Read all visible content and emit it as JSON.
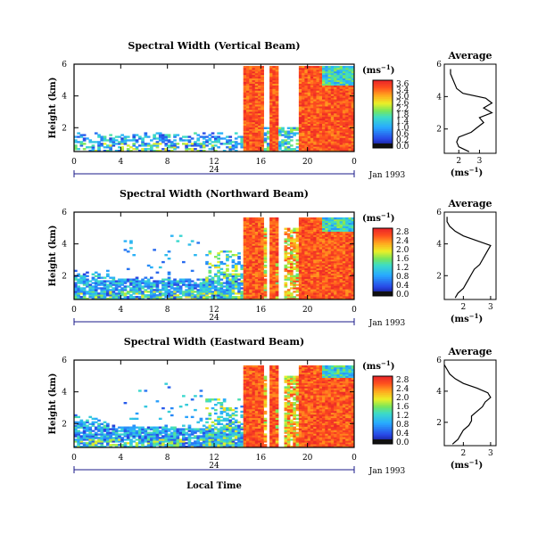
{
  "figure": {
    "xlabel": "Local Time",
    "date_label": "Jan 1993",
    "mid_day_label": "24",
    "ylabel": "Height (km)",
    "units_label": "(ms",
    "units_exp": "−1",
    "avg_title": "Average",
    "avg_xlabel": "(ms",
    "avg_xlabel_exp": "−1",
    "avg_xlabel_close": ")"
  },
  "chart_data": [
    {
      "type": "heatmap",
      "title": "Spectral Width (Vertical Beam)",
      "xlabel": "Local Time",
      "ylabel": "Height (km)",
      "x_ticks": [
        "0",
        "4",
        "8",
        "12",
        "16",
        "20",
        "0"
      ],
      "y_ticks": [
        "6",
        "4",
        "2"
      ],
      "xlim": [
        0,
        24
      ],
      "ylim": [
        0.5,
        6
      ],
      "colorbar": {
        "ticks": [
          "3.6",
          "3.4",
          "3.0",
          "2.6",
          "2.2",
          "1.8",
          "1.4",
          "1.0",
          "0.6",
          "0.2",
          "0.0"
        ],
        "range": [
          0,
          3.6
        ]
      },
      "average_profile": {
        "x_ticks": [
          "2",
          "3"
        ],
        "xlim": [
          1.3,
          3.8
        ],
        "height": [
          0.6,
          0.9,
          1.2,
          1.5,
          1.8,
          2.1,
          2.4,
          2.7,
          3.0,
          3.3,
          3.6,
          3.9,
          4.2,
          4.5,
          4.8,
          5.1,
          5.4,
          5.7
        ],
        "width": [
          2.5,
          2.0,
          1.9,
          2.0,
          2.6,
          2.9,
          3.2,
          3.0,
          3.6,
          3.2,
          3.6,
          3.3,
          2.2,
          1.9,
          1.8,
          1.7,
          1.6,
          1.6
        ]
      }
    },
    {
      "type": "heatmap",
      "title": "Spectral Width (Northward Beam)",
      "xlabel": "Local Time",
      "ylabel": "Height (km)",
      "x_ticks": [
        "0",
        "4",
        "8",
        "12",
        "16",
        "20",
        "0"
      ],
      "y_ticks": [
        "6",
        "4",
        "2"
      ],
      "xlim": [
        0,
        24
      ],
      "ylim": [
        0.5,
        6
      ],
      "colorbar": {
        "ticks": [
          "2.8",
          "2.4",
          "2.0",
          "1.6",
          "1.2",
          "0.8",
          "0.4",
          "0.0"
        ],
        "range": [
          0,
          2.8
        ]
      },
      "average_profile": {
        "x_ticks": [
          "2",
          "3"
        ],
        "xlim": [
          1.3,
          3.2
        ],
        "height": [
          0.6,
          0.9,
          1.2,
          1.5,
          1.8,
          2.1,
          2.4,
          2.7,
          3.0,
          3.3,
          3.6,
          3.9,
          4.2,
          4.5,
          4.8,
          5.1,
          5.4,
          5.7
        ],
        "width": [
          1.7,
          1.8,
          2.0,
          2.1,
          2.2,
          2.3,
          2.4,
          2.6,
          2.7,
          2.8,
          2.9,
          3.0,
          2.5,
          2.0,
          1.7,
          1.5,
          1.4,
          1.4
        ]
      }
    },
    {
      "type": "heatmap",
      "title": "Spectral Width (Eastward Beam)",
      "xlabel": "Local Time",
      "ylabel": "Height (km)",
      "x_ticks": [
        "0",
        "4",
        "8",
        "12",
        "16",
        "20",
        "0"
      ],
      "y_ticks": [
        "6",
        "4",
        "2"
      ],
      "xlim": [
        0,
        24
      ],
      "ylim": [
        0.5,
        6
      ],
      "colorbar": {
        "ticks": [
          "2.8",
          "2.4",
          "2.0",
          "1.6",
          "1.2",
          "0.8",
          "0.4",
          "0.0"
        ],
        "range": [
          0,
          2.8
        ]
      },
      "average_profile": {
        "x_ticks": [
          "2",
          "3"
        ],
        "xlim": [
          1.3,
          3.2
        ],
        "height": [
          0.6,
          0.9,
          1.2,
          1.5,
          1.8,
          2.1,
          2.4,
          2.7,
          3.0,
          3.3,
          3.6,
          3.9,
          4.2,
          4.5,
          4.8,
          5.1,
          5.4,
          5.7
        ],
        "width": [
          1.6,
          1.8,
          1.9,
          2.0,
          2.2,
          2.3,
          2.3,
          2.5,
          2.7,
          2.8,
          3.0,
          2.9,
          2.5,
          2.0,
          1.7,
          1.5,
          1.4,
          1.3
        ]
      }
    }
  ]
}
